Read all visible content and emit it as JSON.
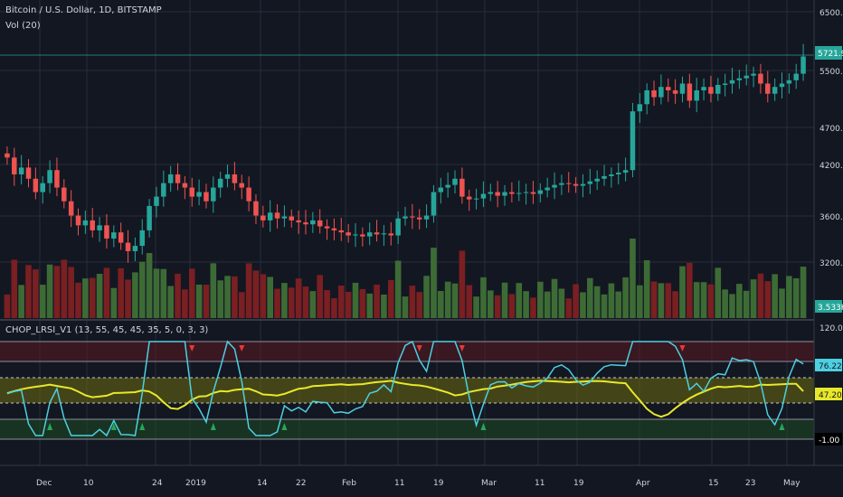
{
  "header": {
    "symbol_title": "Bitcoin / U.S. Dollar, 1D, BITSTAMP",
    "volume_title": "Vol (20)",
    "indicator_title": "CHOP_LRSI_V1 (13, 55, 45, 45, 35, 5, 0, 3, 3)"
  },
  "colors": {
    "background": "#131722",
    "grid": "#2a2e39",
    "bull": "#26a69a",
    "bear": "#ef5350",
    "vol_bull": "#3d6b35",
    "vol_bear": "#7a1f22",
    "lrsi": "#4dd0e1",
    "chop": "#e8e82a",
    "axis_text": "#d1d4dc"
  },
  "price_axis": {
    "ticks": [
      "6500.00",
      "5500.00",
      "4700.00",
      "4200.00",
      "3600.00",
      "3200.00"
    ],
    "last_price": "5721.90",
    "volume_last": "3.533K"
  },
  "indicator_axis": {
    "ticks": [
      "120.00"
    ],
    "lrsi_last": "76.22",
    "chop_last": "47.20",
    "zero_label": "-1.00"
  },
  "time_axis": {
    "ticks": [
      "Dec",
      "10",
      "24",
      "2019",
      "14",
      "22",
      "Feb",
      "11",
      "19",
      "Mar",
      "11",
      "19",
      "Apr",
      "15",
      "23",
      "May"
    ]
  },
  "chart_data": {
    "type": "line",
    "price_series": {
      "name": "Bitcoin / U.S. Dollar",
      "close": [
        4300,
        4100,
        4180,
        4050,
        3900,
        4000,
        4150,
        3950,
        3800,
        3650,
        3550,
        3600,
        3500,
        3550,
        3420,
        3480,
        3380,
        3300,
        3350,
        3500,
        3750,
        3850,
        4000,
        4100,
        4000,
        3950,
        3850,
        3900,
        3800,
        3950,
        4050,
        4100,
        4000,
        3950,
        3800,
        3650,
        3600,
        3680,
        3620,
        3640,
        3600,
        3580,
        3560,
        3600,
        3540,
        3520,
        3500,
        3480,
        3450,
        3460,
        3440,
        3480,
        3460,
        3470,
        3450,
        3620,
        3640,
        3630,
        3610,
        3650,
        3900,
        3950,
        3980,
        4050,
        3850,
        3820,
        3830,
        3880,
        3900,
        3860,
        3900,
        3880,
        3890,
        3900,
        3880,
        3920,
        3950,
        3980,
        4000,
        3990,
        3970,
        3990,
        4020,
        4050,
        4080,
        4100,
        4120,
        4150,
        4900,
        5000,
        5200,
        5100,
        5250,
        5200,
        5150,
        5300,
        5050,
        5200,
        5250,
        5150,
        5280,
        5300,
        5350,
        5380,
        5420,
        5450,
        5300,
        5150,
        5250,
        5300,
        5350,
        5450,
        5722
      ],
      "ylim": [
        3000,
        6700
      ]
    },
    "lrsi": {
      "last": 76.22,
      "ylim": [
        -20,
        120
      ]
    },
    "chop": {
      "last": 47.2
    }
  }
}
